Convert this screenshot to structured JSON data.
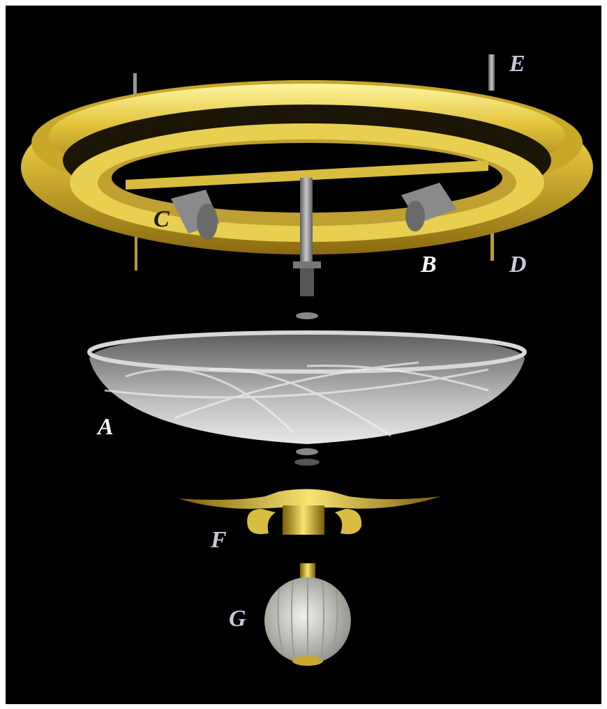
{
  "labels": [
    "E",
    "C",
    "B",
    "D",
    "A",
    "F",
    "G"
  ]
}
